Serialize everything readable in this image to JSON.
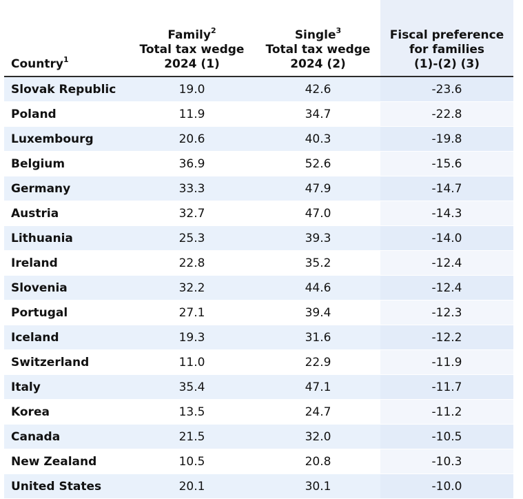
{
  "header": {
    "country": "Country",
    "country_sup": "1",
    "family_line1": "Family",
    "family_sup": "2",
    "family_line2": "Total tax wedge",
    "family_line3": "2024 (1)",
    "single_line1": "Single",
    "single_sup": "3",
    "single_line2": "Total tax wedge",
    "single_line3": "2024 (2)",
    "fiscal_line1": "Fiscal preference",
    "fiscal_line2": "for families",
    "fiscal_line3": "(1)-(2) (3)"
  },
  "rows": [
    {
      "country": "Slovak Republic",
      "family": "19.0",
      "single": "42.6",
      "fiscal": "-23.6"
    },
    {
      "country": "Poland",
      "family": "11.9",
      "single": "34.7",
      "fiscal": "-22.8"
    },
    {
      "country": "Luxembourg",
      "family": "20.6",
      "single": "40.3",
      "fiscal": "-19.8"
    },
    {
      "country": "Belgium",
      "family": "36.9",
      "single": "52.6",
      "fiscal": "-15.6"
    },
    {
      "country": "Germany",
      "family": "33.3",
      "single": "47.9",
      "fiscal": "-14.7"
    },
    {
      "country": "Austria",
      "family": "32.7",
      "single": "47.0",
      "fiscal": "-14.3"
    },
    {
      "country": "Lithuania",
      "family": "25.3",
      "single": "39.3",
      "fiscal": "-14.0"
    },
    {
      "country": "Ireland",
      "family": "22.8",
      "single": "35.2",
      "fiscal": "-12.4"
    },
    {
      "country": "Slovenia",
      "family": "32.2",
      "single": "44.6",
      "fiscal": "-12.4"
    },
    {
      "country": "Portugal",
      "family": "27.1",
      "single": "39.4",
      "fiscal": "-12.3"
    },
    {
      "country": "Iceland",
      "family": "19.3",
      "single": "31.6",
      "fiscal": "-12.2"
    },
    {
      "country": "Switzerland",
      "family": "11.0",
      "single": "22.9",
      "fiscal": "-11.9"
    },
    {
      "country": "Italy",
      "family": "35.4",
      "single": "47.1",
      "fiscal": "-11.7"
    },
    {
      "country": "Korea",
      "family": "13.5",
      "single": "24.7",
      "fiscal": "-11.2"
    },
    {
      "country": "Canada",
      "family": "21.5",
      "single": "32.0",
      "fiscal": "-10.5"
    },
    {
      "country": "New Zealand",
      "family": "10.5",
      "single": "20.8",
      "fiscal": "-10.3"
    },
    {
      "country": "United States",
      "family": "20.1",
      "single": "30.1",
      "fiscal": "-10.0"
    }
  ],
  "colors": {
    "row_stripe": "#e9f1fb",
    "highlight_column": "#f1f5fc",
    "header_rule": "#2b2b2b"
  }
}
